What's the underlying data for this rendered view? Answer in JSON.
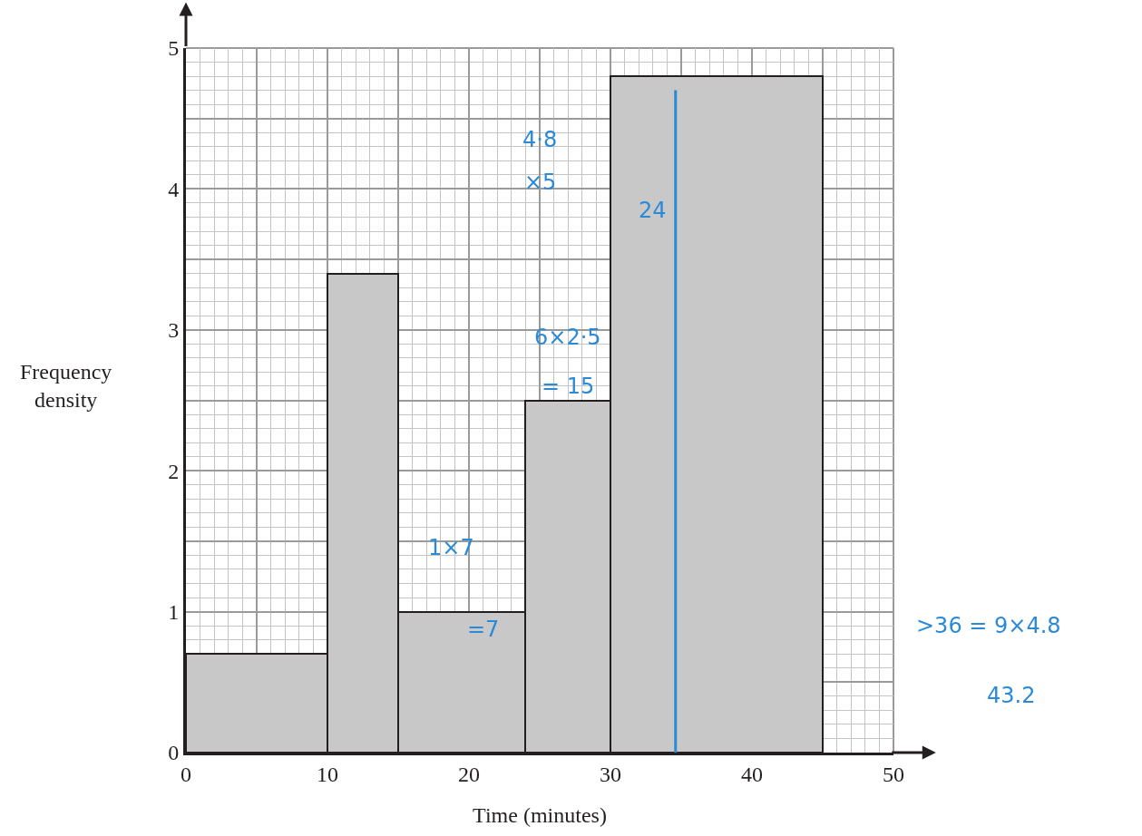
{
  "chart_data": {
    "type": "histogram",
    "xlabel": "Time (minutes)",
    "ylabel": "Frequency density",
    "bins": [
      0,
      10,
      15,
      24,
      30,
      45
    ],
    "values": [
      0.7,
      3.4,
      1,
      2.5,
      4.8
    ],
    "color": "#c8c8c8",
    "xlim": [
      0,
      50
    ],
    "xticks": [
      0,
      {
        "value": 5,
        "label": null
      },
      10,
      {
        "value": 15,
        "label": null
      },
      20,
      {
        "value": 25,
        "label": null
      },
      30,
      {
        "value": 35,
        "label": null
      },
      40,
      {
        "value": 45,
        "label": null
      },
      50
    ],
    "ylim": [
      0,
      5
    ],
    "yticks": [
      0,
      {
        "value": 0.5,
        "label": null
      },
      1,
      {
        "value": 1.5,
        "label": null
      },
      2,
      {
        "value": 2.5,
        "label": null
      },
      3,
      {
        "value": 3.5,
        "label": null
      },
      4,
      {
        "value": 4.5,
        "label": null
      },
      5
    ],
    "grid": true,
    "ref_lines": [
      {
        "axis": "x",
        "value": 34.6,
        "color": "#2b8ad8"
      }
    ],
    "annotations": [
      "4·8",
      "×5",
      "24",
      "6×2·5",
      "= 15",
      "1×7",
      "=7",
      ">36 = 9×4.8",
      "43.2"
    ]
  }
}
